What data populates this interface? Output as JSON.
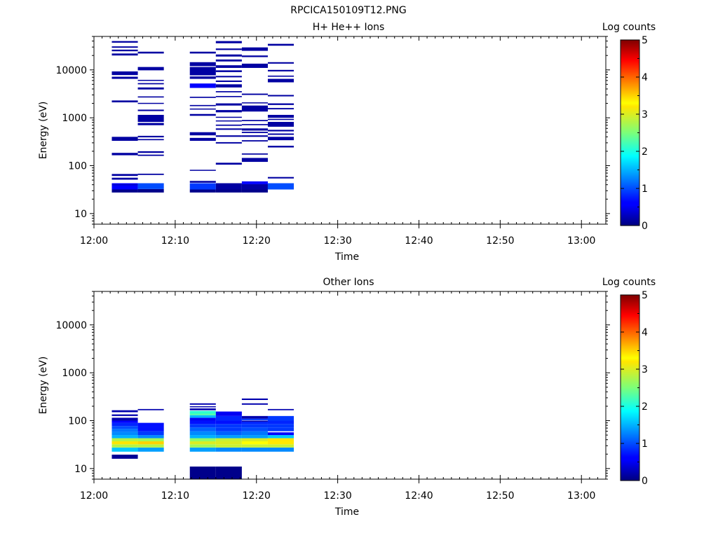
{
  "figure": {
    "title": "RPCICA150109T12.PNG"
  },
  "chart_data": [
    {
      "type": "heatmap",
      "title": "H+ He++ Ions",
      "xlabel": "Time",
      "ylabel": "Energy (eV)",
      "yscale": "log",
      "xlim": [
        "12:00",
        "13:03"
      ],
      "ylim": [
        6,
        50000
      ],
      "x_ticks": [
        "12:00",
        "12:10",
        "12:20",
        "12:30",
        "12:40",
        "12:50",
        "13:00"
      ],
      "y_ticks": [
        "10",
        "100",
        "1000",
        "10000"
      ],
      "colorbar": {
        "label": "Log counts",
        "range": [
          0,
          5
        ],
        "ticks": [
          "0",
          "1",
          "2",
          "3",
          "4",
          "5"
        ]
      },
      "time_bins": [
        {
          "start": "12:02.2",
          "end": "12:05.4",
          "cells": [
            [
              27.5,
              31.8,
              0.05
            ],
            [
              31.8,
              43,
              0.6
            ],
            [
              39,
              41,
              0.3
            ],
            [
              51,
              56,
              0.15
            ],
            [
              61,
              67,
              0.15
            ],
            [
              165,
              185,
              0.15
            ],
            [
              330,
              400,
              0.15
            ],
            [
              2100,
              2300,
              0.15
            ],
            [
              6500,
              7200,
              0.15
            ],
            [
              7800,
              9300,
              0.15
            ],
            [
              20000,
              22000,
              0.15
            ],
            [
              24500,
              26500,
              0.15
            ],
            [
              29000,
              31000,
              0.15
            ],
            [
              37000,
              40000,
              0.15
            ]
          ]
        },
        {
          "start": "12:05.4",
          "end": "12:08.6",
          "cells": [
            [
              27.5,
              32.5,
              0.05
            ],
            [
              32.5,
              43,
              1.0
            ],
            [
              64,
              68,
              0.15
            ],
            [
              160,
              170,
              0.15
            ],
            [
              185,
              200,
              0.15
            ],
            [
              340,
              360,
              0.15
            ],
            [
              390,
              420,
              0.15
            ],
            [
              700,
              780,
              0.15
            ],
            [
              820,
              1150,
              0.15
            ],
            [
              1380,
              1480,
              0.15
            ],
            [
              1980,
              2050,
              0.15
            ],
            [
              2650,
              2800,
              0.15
            ],
            [
              3900,
              4300,
              0.15
            ],
            [
              5000,
              5300,
              0.15
            ],
            [
              5900,
              6200,
              0.15
            ],
            [
              9800,
              11500,
              0.15
            ],
            [
              22000,
              24000,
              0.15
            ]
          ]
        },
        {
          "start": "12:11.8",
          "end": "12:15.0",
          "cells": [
            [
              27.5,
              31.8,
              0.05
            ],
            [
              31.8,
              43,
              0.9
            ],
            [
              44,
              48,
              0.15
            ],
            [
              78,
              82,
              0.15
            ],
            [
              330,
              380,
              0.15
            ],
            [
              430,
              500,
              0.15
            ],
            [
              1100,
              1200,
              0.15
            ],
            [
              1500,
              1560,
              0.15
            ],
            [
              1750,
              1850,
              0.15
            ],
            [
              2600,
              2750,
              0.15
            ],
            [
              4200,
              5200,
              0.6
            ],
            [
              6500,
              7300,
              0.15
            ],
            [
              7700,
              11500,
              0.15
            ],
            [
              12000,
              14500,
              0.15
            ],
            [
              22000,
              24000,
              0.15
            ]
          ]
        },
        {
          "start": "12:15.0",
          "end": "12:18.2",
          "cells": [
            [
              27.5,
              31.8,
              0.05
            ],
            [
              31.8,
              43,
              0.15
            ],
            [
              105,
              115,
              0.15
            ],
            [
              290,
              310,
              0.15
            ],
            [
              400,
              430,
              0.15
            ],
            [
              560,
              600,
              0.15
            ],
            [
              680,
              720,
              0.15
            ],
            [
              840,
              880,
              0.15
            ],
            [
              1000,
              1050,
              0.15
            ],
            [
              1300,
              1450,
              0.15
            ],
            [
              1800,
              2000,
              0.15
            ],
            [
              2700,
              2850,
              0.15
            ],
            [
              3400,
              3600,
              0.15
            ],
            [
              4300,
              5000,
              0.15
            ],
            [
              5600,
              6000,
              0.15
            ],
            [
              7000,
              7500,
              0.15
            ],
            [
              9000,
              9800,
              0.15
            ],
            [
              11000,
              12500,
              0.15
            ],
            [
              15000,
              16500,
              0.15
            ],
            [
              19000,
              21000,
              0.15
            ],
            [
              26000,
              28000,
              0.15
            ],
            [
              36000,
              40000,
              0.15
            ]
          ]
        },
        {
          "start": "12:18.2",
          "end": "12:21.4",
          "cells": [
            [
              27.5,
              31.8,
              0.05
            ],
            [
              31.8,
              41,
              0.15
            ],
            [
              41,
              47,
              0.6
            ],
            [
              120,
              145,
              0.15
            ],
            [
              170,
              180,
              0.15
            ],
            [
              320,
              340,
              0.15
            ],
            [
              400,
              430,
              0.15
            ],
            [
              480,
              510,
              0.15
            ],
            [
              540,
              600,
              0.15
            ],
            [
              700,
              740,
              0.15
            ],
            [
              850,
              900,
              0.15
            ],
            [
              1350,
              1800,
              0.15
            ],
            [
              2000,
              2100,
              0.15
            ],
            [
              3000,
              3200,
              0.15
            ],
            [
              11000,
              13500,
              0.15
            ],
            [
              18500,
              20000,
              0.15
            ],
            [
              25000,
              29500,
              0.15
            ]
          ]
        },
        {
          "start": "12:21.4",
          "end": "12:24.6",
          "cells": [
            [
              31.8,
              43,
              1.0
            ],
            [
              54,
              58,
              0.15
            ],
            [
              240,
              260,
              0.15
            ],
            [
              340,
              400,
              0.15
            ],
            [
              440,
              470,
              0.15
            ],
            [
              520,
              560,
              0.15
            ],
            [
              650,
              820,
              0.15
            ],
            [
              900,
              950,
              0.15
            ],
            [
              1000,
              1150,
              0.15
            ],
            [
              1500,
              1600,
              0.15
            ],
            [
              1850,
              2000,
              0.15
            ],
            [
              2800,
              3000,
              0.15
            ],
            [
              5500,
              6500,
              0.15
            ],
            [
              7200,
              7600,
              0.15
            ],
            [
              9300,
              10000,
              0.15
            ],
            [
              13500,
              14500,
              0.15
            ],
            [
              32000,
              35000,
              0.15
            ]
          ]
        }
      ]
    },
    {
      "type": "heatmap",
      "title": "Other Ions",
      "xlabel": "Time",
      "ylabel": "Energy (eV)",
      "yscale": "log",
      "xlim": [
        "12:00",
        "13:03"
      ],
      "ylim": [
        6,
        50000
      ],
      "x_ticks": [
        "12:00",
        "12:10",
        "12:20",
        "12:30",
        "12:40",
        "12:50",
        "13:00"
      ],
      "y_ticks": [
        "10",
        "100",
        "1000",
        "10000"
      ],
      "colorbar": {
        "label": "Log counts",
        "range": [
          0,
          5
        ],
        "ticks": [
          "0",
          "1",
          "2",
          "3",
          "4",
          "5"
        ]
      },
      "time_bins": [
        {
          "start": "12:02.2",
          "end": "12:05.4",
          "cells": [
            [
              16,
              19.5,
              0.1
            ],
            [
              22.5,
              27.5,
              1.6
            ],
            [
              27.5,
              32,
              2.8
            ],
            [
              32,
              37,
              3.2
            ],
            [
              37,
              43,
              2.8
            ],
            [
              43,
              50,
              1.5
            ],
            [
              50,
              58,
              1.3
            ],
            [
              58,
              67,
              1.2
            ],
            [
              67,
              77,
              1.0
            ],
            [
              77,
              90,
              0.8
            ],
            [
              90,
              100,
              0.6
            ],
            [
              100,
              115,
              0.2
            ],
            [
              125,
              135,
              0.2
            ],
            [
              150,
              165,
              0.2
            ]
          ]
        },
        {
          "start": "12:05.4",
          "end": "12:08.6",
          "cells": [
            [
              22.5,
              27.5,
              1.4
            ],
            [
              27.5,
              32,
              2.8
            ],
            [
              32,
              37,
              3.5
            ],
            [
              37,
              43,
              2.7
            ],
            [
              43,
              50,
              1.3
            ],
            [
              50,
              60,
              0.9
            ],
            [
              60,
              75,
              0.7
            ],
            [
              75,
              90,
              0.7
            ],
            [
              165,
              175,
              0.2
            ]
          ]
        },
        {
          "start": "12:11.8",
          "end": "12:15.0",
          "cells": [
            [
              5.9,
              11,
              0.05
            ],
            [
              22.5,
              27.5,
              1.4
            ],
            [
              27.5,
              32,
              2.7
            ],
            [
              32,
              37,
              3.0
            ],
            [
              37,
              43,
              2.6
            ],
            [
              43,
              50,
              1.5
            ],
            [
              50,
              60,
              1.3
            ],
            [
              60,
              72,
              1.1
            ],
            [
              72,
              85,
              0.9
            ],
            [
              85,
              100,
              0.7
            ],
            [
              100,
              115,
              0.5
            ],
            [
              115,
              130,
              1.5
            ],
            [
              130,
              140,
              2.3
            ],
            [
              140,
              160,
              2.1
            ],
            [
              165,
              180,
              0.2
            ],
            [
              190,
              200,
              0.2
            ],
            [
              215,
              230,
              0.2
            ]
          ]
        },
        {
          "start": "12:15.0",
          "end": "12:18.2",
          "cells": [
            [
              5.9,
              11,
              0.05
            ],
            [
              22.5,
              27.5,
              1.3
            ],
            [
              27.5,
              32,
              2.9
            ],
            [
              32,
              37,
              3.0
            ],
            [
              37,
              43,
              2.9
            ],
            [
              43,
              50,
              1.4
            ],
            [
              50,
              60,
              1.1
            ],
            [
              60,
              72,
              0.9
            ],
            [
              72,
              85,
              0.9
            ],
            [
              85,
              100,
              0.7
            ],
            [
              100,
              125,
              0.8
            ],
            [
              125,
              155,
              0.5
            ]
          ]
        },
        {
          "start": "12:18.2",
          "end": "12:21.4",
          "cells": [
            [
              22.5,
              27.5,
              1.3
            ],
            [
              27.5,
              32,
              2.9
            ],
            [
              32,
              37,
              3.3
            ],
            [
              37,
              43,
              3.0
            ],
            [
              43,
              50,
              1.4
            ],
            [
              50,
              60,
              1.2
            ],
            [
              60,
              72,
              1.0
            ],
            [
              72,
              85,
              0.9
            ],
            [
              85,
              95,
              0.8
            ],
            [
              95,
              100,
              0.2
            ],
            [
              102,
              110,
              0.9
            ],
            [
              110,
              125,
              0.2
            ],
            [
              215,
              230,
              0.2
            ],
            [
              270,
              290,
              0.2
            ]
          ]
        },
        {
          "start": "12:21.4",
          "end": "12:24.6",
          "cells": [
            [
              22.5,
              27.5,
              1.3
            ],
            [
              27.5,
              32,
              2.9
            ],
            [
              32,
              37,
              3.4
            ],
            [
              37,
              43,
              3.2
            ],
            [
              43,
              50,
              1.6
            ],
            [
              50,
              57,
              0.6
            ],
            [
              60,
              72,
              0.9
            ],
            [
              72,
              85,
              0.9
            ],
            [
              85,
              100,
              0.8
            ],
            [
              100,
              125,
              0.9
            ],
            [
              165,
              175,
              0.2
            ]
          ]
        }
      ]
    }
  ]
}
